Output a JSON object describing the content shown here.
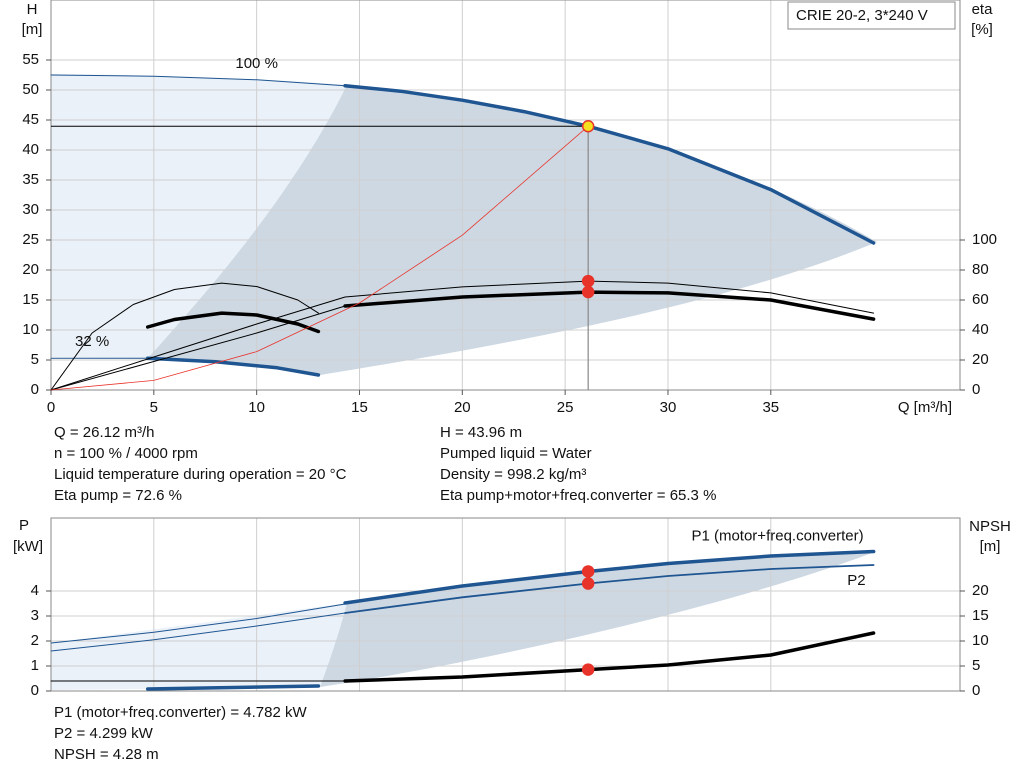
{
  "chart_data": [
    {
      "type": "line",
      "title": "CRIE 20-2, 3*240 V",
      "x_label": "Q [m³/h]",
      "y_label": [
        "H",
        "[m]"
      ],
      "y2_label": [
        "eta",
        "[%]"
      ],
      "xlim": [
        0,
        44.2
      ],
      "xticks": [
        0,
        5,
        10,
        15,
        20,
        25,
        30,
        35
      ],
      "ylim": [
        0,
        65
      ],
      "yticks": [
        0,
        5,
        10,
        15,
        20,
        25,
        30,
        35,
        40,
        45,
        50,
        55
      ],
      "y2lim": [
        0,
        260
      ],
      "y2ticks": [
        0,
        20,
        40,
        60,
        80,
        100
      ],
      "grid": true,
      "series": [
        {
          "name": "100 %",
          "color": "#1f5591",
          "weight": "thin",
          "x": [
            0,
            5,
            10,
            14.3
          ],
          "values": [
            52.5,
            52.3,
            51.7,
            50.7
          ]
        },
        {
          "color": "#1f5591",
          "weight": "thick",
          "x": [
            14.3,
            17,
            20,
            23,
            26.12,
            30,
            35,
            40
          ],
          "values": [
            50.7,
            49.8,
            48.3,
            46.4,
            43.96,
            40.2,
            33.4,
            24.5
          ]
        },
        {
          "name": "32 %",
          "color": "#1f5591",
          "weight": "thin",
          "x": [
            0,
            2,
            4.7
          ],
          "values": [
            5.3,
            5.3,
            5.3
          ]
        },
        {
          "color": "#1f5591",
          "weight": "thick",
          "x": [
            4.7,
            8,
            11,
            13
          ],
          "values": [
            5.3,
            4.7,
            3.7,
            2.5
          ]
        },
        {
          "color": "#000000",
          "weight": "thin",
          "axis": "y2",
          "x": [
            0,
            5,
            10,
            14.3,
            20,
            26.12,
            30,
            35,
            40
          ],
          "values": [
            0,
            22,
            44,
            62,
            68.7,
            72.6,
            71.3,
            64.7,
            51.3
          ]
        },
        {
          "color": "#000000",
          "weight": "thin",
          "axis": "y2",
          "x": [
            0,
            5,
            10,
            14.3
          ],
          "values": [
            0,
            19,
            38,
            56
          ]
        },
        {
          "color": "#000000",
          "weight": "thick",
          "axis": "y2",
          "x": [
            14.3,
            20,
            26.12,
            30,
            35,
            40
          ],
          "values": [
            56,
            62,
            65.3,
            64.7,
            60,
            47.3
          ]
        },
        {
          "color": "#000000",
          "weight": "thin",
          "axis": "y2",
          "x": [
            0,
            2,
            4,
            6,
            8.3,
            10,
            12,
            13
          ],
          "values": [
            0,
            38,
            57,
            67,
            71.3,
            69,
            60,
            51.3
          ]
        },
        {
          "color": "#000000",
          "weight": "thick",
          "axis": "y2",
          "x": [
            4.7,
            6,
            8.3,
            10,
            12,
            13
          ],
          "values": [
            42,
            47,
            51.3,
            50,
            44,
            39
          ]
        },
        {
          "color": "#e8332a",
          "weight": "fine",
          "x": [
            0,
            5,
            10,
            15,
            20,
            26.12
          ],
          "values": [
            0,
            1.6,
            6.4,
            14.5,
            25.8,
            43.96
          ]
        }
      ],
      "points": [
        {
          "x": 26.12,
          "y": 43.96,
          "color": "#f5e020",
          "edge_color": "#e8332a"
        },
        {
          "x": 26.12,
          "y": 72.6,
          "axis": "y2",
          "color": "#e8332a"
        },
        {
          "x": 26.12,
          "y": 65.3,
          "axis": "y2",
          "color": "#e8332a"
        }
      ],
      "info": [
        [
          "Q = 26.12 m³/h",
          "n = 100 % / 4000 rpm",
          "Liquid temperature during operation = 20 °C",
          "Eta pump = 72.6 %"
        ],
        [
          "H = 43.96 m",
          "Pumped liquid = Water",
          "Density = 998.2 kg/m³",
          "Eta pump+motor+freq.converter = 65.3 %"
        ]
      ]
    },
    {
      "type": "line",
      "y_label": [
        "P",
        "[kW]"
      ],
      "y2_label": [
        "NPSH",
        "[m]"
      ],
      "xlim": [
        0,
        44.2
      ],
      "ylim": [
        0,
        6.92
      ],
      "yticks": [
        0,
        1,
        2,
        3,
        4
      ],
      "y2lim": [
        0,
        34.6
      ],
      "y2ticks": [
        0,
        5,
        10,
        15,
        20
      ],
      "grid": true,
      "series": [
        {
          "color": "#1f5591",
          "weight": "thin",
          "x": [
            0,
            5,
            10,
            14.3
          ],
          "values": [
            1.92,
            2.35,
            2.9,
            3.48
          ]
        },
        {
          "name": "P1 (motor+freq.converter)",
          "color": "#1f5591",
          "weight": "thick",
          "x": [
            14.3,
            20,
            26.12,
            30,
            35,
            40
          ],
          "values": [
            3.52,
            4.2,
            4.782,
            5.1,
            5.4,
            5.58
          ]
        },
        {
          "color": "#1f5591",
          "weight": "thin",
          "x": [
            0,
            5,
            10,
            14.3
          ],
          "values": [
            1.6,
            2.05,
            2.6,
            3.12
          ]
        },
        {
          "name": "P2",
          "color": "#1f5591",
          "weight": "medium",
          "x": [
            14.3,
            20,
            26.12,
            30,
            35,
            40
          ],
          "values": [
            3.12,
            3.75,
            4.299,
            4.6,
            4.88,
            5.04
          ]
        },
        {
          "color": "#1f5591",
          "weight": "thick",
          "x": [
            4.7,
            13
          ],
          "values": [
            0.08,
            0.2
          ]
        },
        {
          "color": "#000000",
          "weight": "thin",
          "axis": "y2",
          "x": [
            0,
            14.3
          ],
          "values": [
            2,
            2
          ]
        },
        {
          "color": "#000000",
          "weight": "thick",
          "axis": "y2",
          "x": [
            14.3,
            20,
            26.12,
            30,
            35,
            40
          ],
          "values": [
            2,
            2.8,
            4.28,
            5.2,
            7.2,
            11.6
          ]
        }
      ],
      "points": [
        {
          "x": 26.12,
          "y": 4.782,
          "color": "#e8332a"
        },
        {
          "x": 26.12,
          "y": 4.299,
          "color": "#e8332a"
        },
        {
          "x": 26.12,
          "y": 4.28,
          "axis": "y2",
          "color": "#e8332a"
        }
      ],
      "info": [
        [
          "P1 (motor+freq.converter) = 4.782 kW",
          "P2 = 4.299 kW",
          "NPSH = 4.28 m"
        ]
      ]
    }
  ]
}
